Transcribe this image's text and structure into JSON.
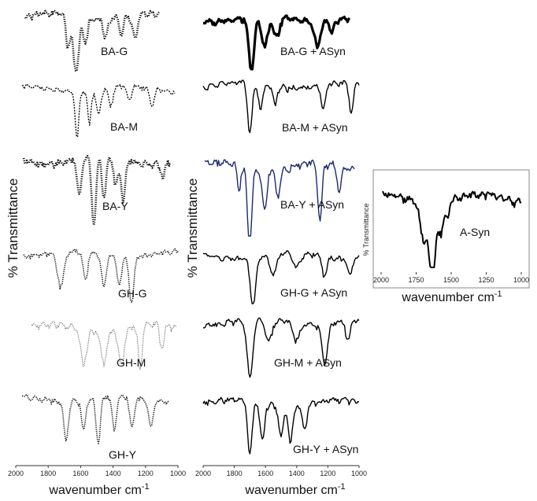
{
  "chart_data": {
    "type": "line",
    "y_label": "% Transmittance",
    "x_label": "wavenumber cm",
    "x_label_superscript": "-1",
    "x_ticks_main": [
      "2000",
      "1800",
      "1600",
      "1400",
      "1200",
      "1000"
    ],
    "x_ticks_inset": [
      "2000",
      "1750",
      "1500",
      "1250",
      "1000"
    ],
    "panels": [
      {
        "column": "left",
        "spectra": [
          {
            "label": "BA-G",
            "style": "heavy-dotted"
          },
          {
            "label": "BA-M",
            "style": "dashed"
          },
          {
            "label": "BA-Y",
            "style": "heavy-dotted"
          },
          {
            "label": "GH-G",
            "style": "dotted"
          },
          {
            "label": "GH-M",
            "style": "light-dotted"
          },
          {
            "label": "GH-Y",
            "style": "dotted"
          }
        ]
      },
      {
        "column": "middle",
        "spectra": [
          {
            "label": "BA-G + ASyn",
            "style": "bold-solid"
          },
          {
            "label": "BA-M + ASyn",
            "style": "solid"
          },
          {
            "label": "BA-Y + ASyn",
            "style": "solid-blue"
          },
          {
            "label": "GH-G + ASyn",
            "style": "solid"
          },
          {
            "label": "GH-M + ASyn",
            "style": "solid"
          },
          {
            "label": "GH-Y + ASyn",
            "style": "solid"
          }
        ]
      },
      {
        "column": "inset",
        "spectra": [
          {
            "label": "A-Syn",
            "style": "solid"
          }
        ]
      }
    ],
    "grid": false
  }
}
